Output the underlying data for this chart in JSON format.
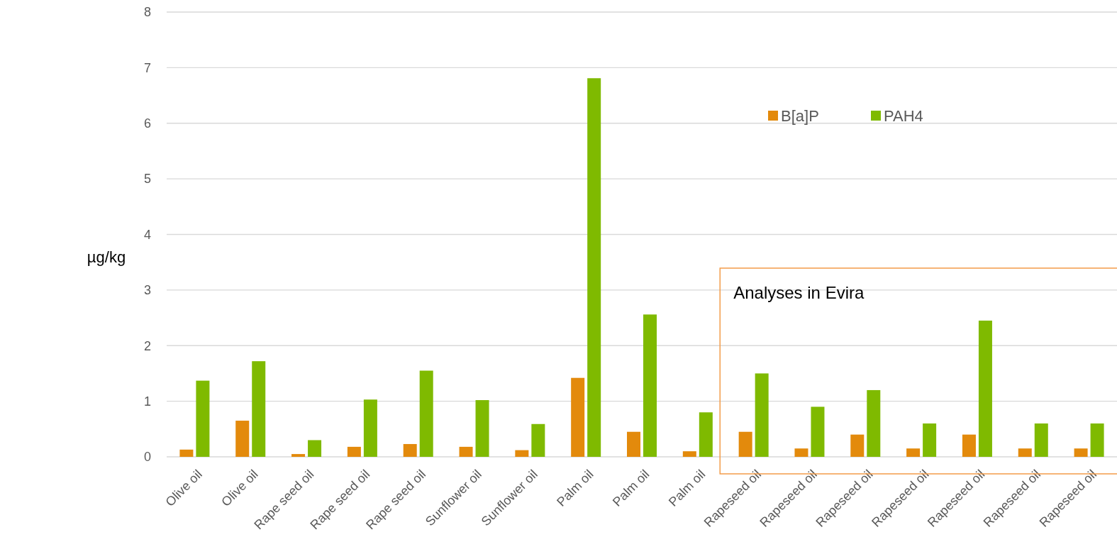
{
  "chart_data": {
    "type": "bar",
    "ylabel": "µg/kg",
    "categories": [
      "Olive oil",
      "Olive oil",
      "Rape seed oil",
      "Rape seed oil",
      "Rape seed oil",
      "Sunflower oil",
      "Sunflower oil",
      "Palm oil",
      "Palm oil",
      "Palm oil",
      "Rapeseed oil",
      "Rapeseed oil",
      "Rapeseed oil",
      "Rapeseed oil",
      "Rapeseed oil",
      "Rapeseed oil",
      "Rapeseed oil"
    ],
    "series": [
      {
        "name": "B[a]P",
        "color": "#e38a0c",
        "values": [
          0.13,
          0.65,
          0.05,
          0.18,
          0.23,
          0.18,
          0.12,
          1.42,
          0.45,
          0.1,
          0.45,
          0.15,
          0.4,
          0.15,
          0.4,
          0.15,
          0.15
        ]
      },
      {
        "name": "PAH4",
        "color": "#7fba00",
        "values": [
          1.37,
          1.72,
          0.3,
          1.03,
          1.55,
          1.02,
          0.59,
          6.81,
          2.56,
          0.8,
          1.5,
          0.9,
          1.2,
          0.6,
          2.45,
          0.6,
          0.6
        ]
      }
    ],
    "annotations": [
      "Analyses in Evira"
    ],
    "ylim": [
      0,
      8
    ],
    "yticks": [
      0,
      1,
      2,
      3,
      4,
      5,
      6,
      7,
      8
    ],
    "grid": "y",
    "legend": "top right"
  }
}
